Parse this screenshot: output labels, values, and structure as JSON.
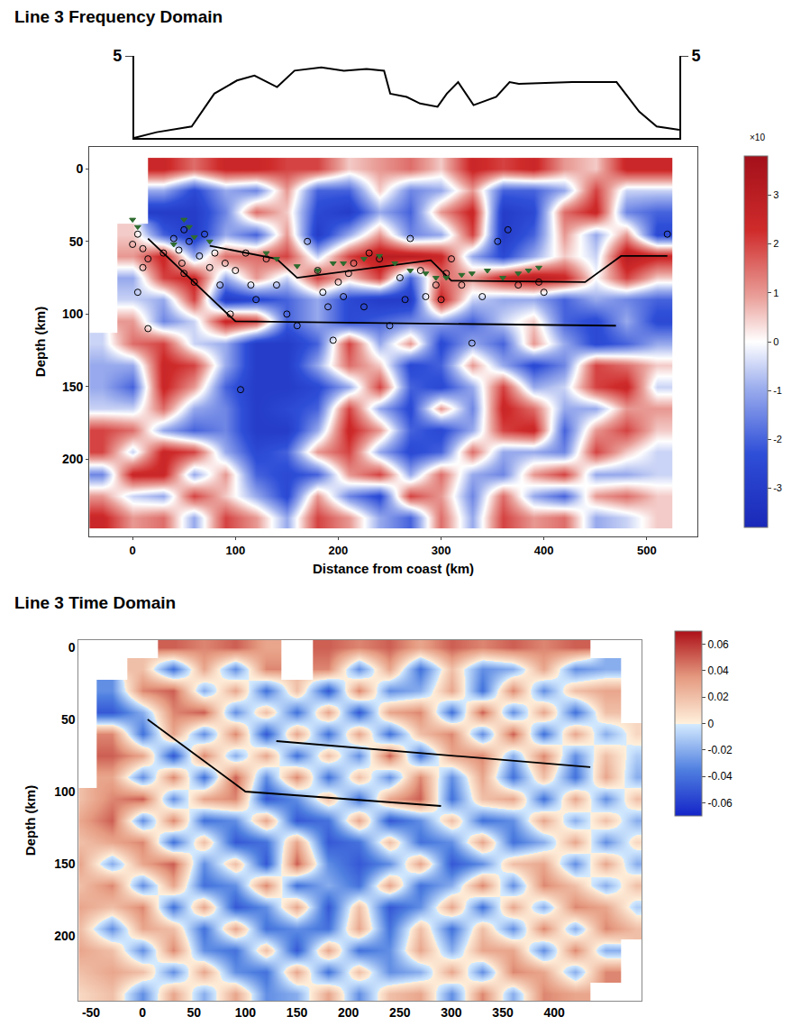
{
  "chart_data": [
    {
      "type": "line",
      "title": "Line 3 Frequency Domain",
      "color": "#000000",
      "x": [
        2,
        24,
        58,
        80,
        102,
        119,
        141,
        158,
        184,
        206,
        228,
        245,
        251,
        267,
        280,
        297,
        306,
        317,
        332,
        354,
        367,
        376,
        428,
        471,
        493,
        510,
        532
      ],
      "values": [
        0,
        0.35,
        0.7,
        2.7,
        3.5,
        3.8,
        3.1,
        4.1,
        4.3,
        4.1,
        4.2,
        4.1,
        2.7,
        2.5,
        2.1,
        1.9,
        2.7,
        3.4,
        2.0,
        2.5,
        3.4,
        3.3,
        3.4,
        3.4,
        1.6,
        0.7,
        0.5
      ],
      "xlim": [
        2,
        532
      ],
      "ylim": [
        0,
        5
      ],
      "yticks": [
        5
      ],
      "y2lim": [
        0,
        5
      ],
      "y2ticks": [
        5
      ],
      "tick_labels": "y"
    },
    {
      "type": "heatmap",
      "xlabel": "Distance from coast (km)",
      "ylabel": "Depth (km)",
      "xlim": [
        -42,
        549
      ],
      "ylim": [
        253,
        -15
      ],
      "xticks": [
        0,
        100,
        200,
        300,
        400,
        500
      ],
      "yticks": [
        0,
        50,
        100,
        150,
        200
      ],
      "zlim": [
        -3.8,
        3.8
      ],
      "zticks": [
        3,
        2,
        1,
        0,
        -1,
        -2,
        -3
      ],
      "colorbar_label": "×10",
      "x": [
        -30,
        0,
        30,
        60,
        90,
        120,
        150,
        180,
        210,
        240,
        270,
        300,
        330,
        360,
        390,
        420,
        450,
        480,
        510
      ],
      "y": [
        0,
        15,
        30,
        45,
        60,
        75,
        90,
        105,
        120,
        135,
        150,
        165,
        180,
        195,
        210,
        225,
        240
      ],
      "z": [
        [
          null,
          null,
          2.5,
          1.5,
          2.5,
          2.5,
          2,
          2,
          0.5,
          1,
          1.5,
          0.5,
          2.5,
          2,
          2.5,
          1,
          0.5,
          2.5,
          2.5
        ],
        [
          null,
          null,
          -1,
          -2.5,
          -1,
          -1.5,
          1,
          -2,
          -2,
          0.5,
          -1.5,
          -1,
          1,
          -2,
          -2,
          -1,
          2,
          -0.5,
          -0.5
        ],
        [
          null,
          null,
          -3,
          -3,
          -1.5,
          1.5,
          0.5,
          -2.5,
          -3,
          -1,
          -2,
          1,
          2.5,
          -3,
          -2.5,
          1.5,
          2.5,
          -1.5,
          -2
        ],
        [
          null,
          0.5,
          -2,
          -3,
          -1,
          -2,
          1,
          -3,
          -1,
          1,
          -1.5,
          -1,
          2,
          -3,
          -2,
          1,
          -1,
          1,
          -2.5
        ],
        [
          null,
          1,
          2.5,
          -1,
          1.5,
          1.5,
          2,
          -0.5,
          2,
          3,
          3,
          2.5,
          -1,
          -2.5,
          -1,
          0.5,
          -0.5,
          3,
          2.5
        ],
        [
          null,
          -1,
          2,
          2.5,
          -1,
          1,
          -0.5,
          2,
          0.5,
          2,
          -2,
          1.5,
          1,
          2.5,
          3,
          2.5,
          0,
          2,
          0.5
        ],
        [
          null,
          -0.5,
          -1,
          2,
          -3,
          -2.5,
          -2,
          -1,
          -2.5,
          -3,
          -3,
          2.5,
          -0.5,
          -1,
          -1,
          -2,
          -1,
          -1.5,
          -2
        ],
        [
          null,
          1,
          -1.5,
          -0.5,
          2.5,
          2,
          -2,
          -1,
          -2.5,
          -2,
          -1.5,
          -1,
          -2,
          -0.5,
          0.5,
          -2,
          -2.5,
          -1,
          -2.5
        ],
        [
          -0.5,
          1.5,
          2,
          -0.5,
          -1,
          -3,
          -3,
          -2,
          2,
          -1,
          1,
          -2.5,
          -1,
          -2,
          1,
          -1,
          -2.5,
          -2,
          -1
        ],
        [
          -1,
          -1,
          2.5,
          2,
          -1,
          -3,
          -3,
          -1,
          1.5,
          0.5,
          -2.5,
          -2,
          1,
          -1,
          -2.5,
          -1.5,
          2,
          1.5,
          0.5
        ],
        [
          -1,
          -2,
          2.5,
          1,
          -2,
          -3,
          -3,
          -2.5,
          -1,
          2,
          -2,
          -2.5,
          -1,
          2,
          -1,
          -0.5,
          2,
          2.5,
          -0.5
        ],
        [
          -0.5,
          -0.5,
          1.5,
          -1,
          -1.5,
          -3,
          -2.5,
          -2,
          2,
          -1,
          -2.5,
          1,
          -1.5,
          2.5,
          1.5,
          -1,
          -1,
          1,
          1
        ],
        [
          2,
          1.5,
          -1,
          -2,
          -1.5,
          -3,
          -3,
          -1,
          2.5,
          1,
          -2,
          -2.5,
          -1,
          2,
          2.5,
          -2,
          1,
          2,
          0.5
        ],
        [
          2,
          -0.5,
          2.5,
          2,
          -1,
          -2.5,
          -2,
          1,
          2,
          -1,
          -2.5,
          -2,
          1.5,
          -1,
          -1,
          -1.5,
          2,
          0.5,
          -0.5
        ],
        [
          -1.5,
          2.5,
          2.5,
          -1,
          1,
          -2,
          -2.5,
          -2,
          1,
          2,
          -1,
          1.5,
          -1,
          -1.5,
          1,
          2,
          -1,
          -1,
          -0.5
        ],
        [
          1,
          -0.5,
          -1,
          2,
          0.5,
          -1,
          -2.5,
          1,
          -1.5,
          -2.5,
          2,
          1,
          -1.5,
          1.5,
          -1,
          -2,
          1,
          1.5,
          0.5
        ],
        [
          2.5,
          1,
          1.5,
          -1,
          2,
          1,
          -1,
          2,
          1,
          -1,
          -2,
          1.5,
          -1,
          2,
          1,
          1.5,
          -1,
          -0.5,
          0.5
        ]
      ],
      "overlays": [
        {
          "type": "line",
          "color": "#000000",
          "x": [
            75,
            140,
            160,
            290,
            310,
            440,
            475,
            520
          ],
          "values": [
            53,
            62,
            75,
            63,
            77,
            78,
            60,
            60
          ]
        },
        {
          "type": "line",
          "color": "#000000",
          "x": [
            15,
            100,
            470
          ],
          "values": [
            48,
            105,
            108
          ]
        },
        {
          "type": "scatter",
          "marker": "circle-open",
          "color": "#000000",
          "x": [
            0,
            5,
            10,
            10,
            15,
            5,
            15,
            30,
            40,
            45,
            48,
            50,
            50,
            55,
            60,
            65,
            70,
            75,
            80,
            85,
            90,
            95,
            100,
            105,
            110,
            115,
            120,
            130,
            140,
            150,
            160,
            170,
            180,
            185,
            190,
            195,
            200,
            205,
            210,
            215,
            225,
            230,
            240,
            250,
            260,
            265,
            270,
            280,
            285,
            295,
            300,
            305,
            310,
            320,
            330,
            340,
            355,
            365,
            375,
            395,
            400,
            520
          ],
          "values": [
            52,
            45,
            55,
            68,
            62,
            85,
            110,
            58,
            48,
            56,
            65,
            42,
            72,
            50,
            78,
            60,
            45,
            68,
            58,
            80,
            65,
            100,
            70,
            152,
            58,
            80,
            90,
            62,
            80,
            100,
            108,
            50,
            70,
            85,
            95,
            118,
            78,
            88,
            72,
            65,
            95,
            58,
            62,
            108,
            75,
            90,
            48,
            70,
            88,
            80,
            90,
            72,
            62,
            80,
            120,
            88,
            50,
            42,
            80,
            78,
            85,
            45
          ]
        },
        {
          "type": "scatter",
          "marker": "triangle-down",
          "color": "#2f6b2f",
          "x": [
            0,
            5,
            40,
            50,
            55,
            60,
            75,
            130,
            140,
            160,
            180,
            195,
            205,
            225,
            240,
            255,
            270,
            285,
            295,
            305,
            320,
            330,
            345,
            360,
            375,
            385,
            395
          ],
          "values": [
            35,
            40,
            52,
            35,
            40,
            47,
            50,
            58,
            62,
            67,
            70,
            65,
            65,
            62,
            60,
            65,
            70,
            72,
            75,
            75,
            73,
            72,
            70,
            75,
            72,
            70,
            68
          ]
        }
      ]
    },
    {
      "type": "heatmap",
      "title": "Line 3 Time Domain",
      "ylabel": "Depth (km)",
      "xlim": [
        -62,
        485
      ],
      "ylim": [
        245,
        -5
      ],
      "xticks": [
        -50,
        0,
        50,
        100,
        150,
        200,
        250,
        300,
        350,
        400
      ],
      "yticks": [
        0,
        50,
        100,
        150,
        200
      ],
      "zlim": [
        -0.07,
        0.07
      ],
      "zticks": [
        0.06,
        0.04,
        0.02,
        0,
        -0.02,
        -0.04,
        -0.06
      ],
      "x": [
        -60,
        -30,
        0,
        30,
        60,
        90,
        120,
        150,
        180,
        210,
        240,
        270,
        300,
        330,
        360,
        390,
        420,
        450,
        480
      ],
      "y": [
        0,
        15,
        30,
        45,
        60,
        75,
        90,
        105,
        120,
        135,
        150,
        165,
        180,
        195,
        210,
        225,
        240
      ],
      "z": [
        [
          null,
          null,
          null,
          0.05,
          0.04,
          0.05,
          0.03,
          null,
          0.05,
          0.04,
          0.05,
          0.03,
          0.05,
          0.04,
          0.05,
          0.04,
          0.05,
          null,
          null
        ],
        [
          null,
          null,
          0.02,
          -0.04,
          0.03,
          -0.03,
          0.04,
          null,
          0.04,
          -0.03,
          0.03,
          -0.04,
          0.02,
          -0.03,
          -0.02,
          0.03,
          -0.03,
          -0.02,
          null
        ],
        [
          null,
          -0.03,
          0.04,
          0.05,
          -0.02,
          0.03,
          -0.04,
          0.02,
          -0.05,
          0.04,
          -0.03,
          -0.02,
          0.03,
          -0.04,
          0.04,
          -0.03,
          0.02,
          0.03,
          null
        ],
        [
          null,
          -0.05,
          -0.02,
          0.04,
          0.05,
          -0.03,
          0.02,
          -0.04,
          0.03,
          -0.05,
          0.03,
          0.04,
          -0.04,
          0.05,
          -0.03,
          0.03,
          -0.04,
          0.02,
          null
        ],
        [
          null,
          0.04,
          -0.04,
          0.03,
          -0.03,
          0.04,
          -0.05,
          0.03,
          -0.04,
          0.03,
          -0.04,
          0.02,
          0.04,
          -0.03,
          0.05,
          -0.04,
          0.03,
          -0.02,
          0.01
        ],
        [
          null,
          0.05,
          0.03,
          -0.05,
          0.04,
          -0.02,
          0.03,
          -0.04,
          0.02,
          -0.03,
          0.05,
          -0.04,
          0.03,
          0.04,
          -0.02,
          0.04,
          -0.03,
          0.02,
          -0.01
        ],
        [
          null,
          0.03,
          -0.03,
          0.04,
          -0.04,
          0.05,
          -0.03,
          0.04,
          -0.04,
          0.02,
          -0.03,
          0.04,
          -0.03,
          0.03,
          -0.04,
          0.02,
          -0.04,
          0.03,
          -0.02
        ],
        [
          0.02,
          0.04,
          0.05,
          -0.03,
          0.03,
          0.04,
          -0.05,
          -0.03,
          0.02,
          -0.04,
          0.03,
          0.05,
          -0.04,
          0.02,
          0.03,
          -0.04,
          0.03,
          -0.03,
          0.02
        ],
        [
          0.03,
          0.05,
          -0.03,
          0.04,
          -0.04,
          -0.03,
          0.03,
          -0.05,
          -0.04,
          0.03,
          -0.05,
          -0.03,
          0.02,
          -0.04,
          -0.03,
          0.03,
          -0.02,
          0.02,
          -0.02
        ],
        [
          0.02,
          0.03,
          0.04,
          -0.04,
          0.02,
          -0.05,
          -0.04,
          0.03,
          -0.05,
          -0.04,
          0.02,
          -0.04,
          -0.03,
          0.03,
          -0.04,
          -0.02,
          0.03,
          -0.03,
          0.01
        ],
        [
          0.03,
          -0.02,
          0.03,
          0.05,
          -0.03,
          0.02,
          -0.05,
          0.05,
          -0.03,
          -0.05,
          -0.03,
          0.03,
          -0.05,
          -0.03,
          0.02,
          0.03,
          -0.03,
          0.03,
          -0.02
        ],
        [
          0.02,
          0.04,
          -0.03,
          0.03,
          -0.04,
          -0.03,
          0.04,
          -0.04,
          -0.02,
          -0.04,
          0.03,
          -0.04,
          -0.02,
          0.04,
          -0.03,
          0.04,
          0.02,
          -0.02,
          0.02
        ],
        [
          0.03,
          0.02,
          0.04,
          -0.04,
          0.03,
          -0.05,
          -0.03,
          0.03,
          -0.05,
          0.02,
          -0.05,
          -0.03,
          0.03,
          -0.04,
          0.03,
          -0.02,
          0.04,
          0.03,
          -0.01
        ],
        [
          0.02,
          -0.03,
          0.03,
          0.02,
          -0.04,
          0.03,
          -0.04,
          -0.03,
          -0.04,
          0.03,
          -0.04,
          0.02,
          -0.04,
          0.02,
          -0.03,
          0.04,
          -0.02,
          0.04,
          0.02
        ],
        [
          0.03,
          0.02,
          -0.03,
          0.04,
          -0.03,
          -0.04,
          0.02,
          -0.05,
          0.03,
          -0.04,
          -0.03,
          0.03,
          -0.02,
          0.03,
          0.03,
          -0.03,
          0.04,
          -0.02,
          null
        ],
        [
          0.02,
          0.03,
          0.02,
          -0.03,
          0.03,
          -0.03,
          -0.04,
          0.03,
          -0.04,
          0.02,
          -0.03,
          -0.02,
          0.03,
          -0.03,
          0.04,
          0.03,
          -0.02,
          0.04,
          null
        ],
        [
          0.01,
          0.02,
          -0.03,
          0.03,
          -0.02,
          0.03,
          -0.03,
          -0.02,
          0.03,
          -0.03,
          0.02,
          0.03,
          -0.03,
          0.04,
          -0.02,
          0.04,
          0.03,
          null,
          null
        ]
      ],
      "overlays": [
        {
          "type": "line",
          "color": "#000000",
          "x": [
            5,
            100,
            290
          ],
          "values": [
            50,
            100,
            110
          ]
        },
        {
          "type": "line",
          "color": "#000000",
          "x": [
            130,
            435
          ],
          "values": [
            65,
            83
          ]
        }
      ]
    }
  ]
}
